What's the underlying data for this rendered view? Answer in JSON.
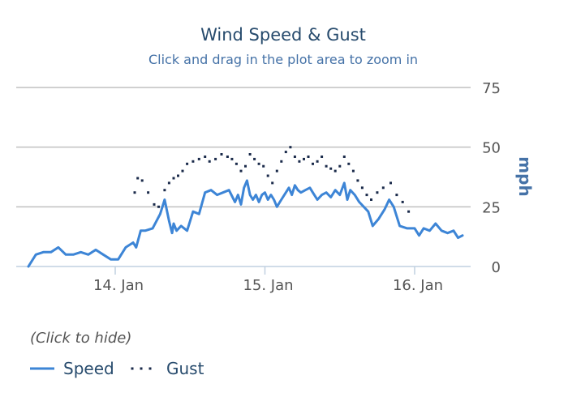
{
  "chart_data": {
    "type": "line",
    "title": "Wind Speed & Gust",
    "subtitle": "Click and drag in the plot area to zoom in",
    "ylabel": "mph",
    "ylim": [
      0,
      75
    ],
    "yticks": [
      0,
      25,
      50,
      75
    ],
    "xrange": [
      13.4,
      16.35
    ],
    "xticks": [
      {
        "value": 14,
        "label": "14. Jan"
      },
      {
        "value": 15,
        "label": "15. Jan"
      },
      {
        "value": 16,
        "label": "16. Jan"
      }
    ],
    "grid": true,
    "legend": {
      "position": "bottom-left",
      "hint": "(Click to hide)"
    },
    "series": [
      {
        "name": "Speed",
        "style": "solid",
        "color": "#3d85d6",
        "points": [
          [
            13.42,
            0
          ],
          [
            13.47,
            5
          ],
          [
            13.52,
            6
          ],
          [
            13.57,
            6
          ],
          [
            13.62,
            8
          ],
          [
            13.67,
            5
          ],
          [
            13.72,
            5
          ],
          [
            13.77,
            6
          ],
          [
            13.82,
            5
          ],
          [
            13.87,
            7
          ],
          [
            13.92,
            5
          ],
          [
            13.97,
            3
          ],
          [
            14.02,
            3
          ],
          [
            14.07,
            8
          ],
          [
            14.12,
            10
          ],
          [
            14.14,
            8
          ],
          [
            14.17,
            15
          ],
          [
            14.2,
            15
          ],
          [
            14.25,
            16
          ],
          [
            14.3,
            22
          ],
          [
            14.33,
            28
          ],
          [
            14.36,
            19
          ],
          [
            14.38,
            14
          ],
          [
            14.39,
            18
          ],
          [
            14.41,
            15
          ],
          [
            14.44,
            17
          ],
          [
            14.48,
            15
          ],
          [
            14.52,
            23
          ],
          [
            14.56,
            22
          ],
          [
            14.6,
            31
          ],
          [
            14.64,
            32
          ],
          [
            14.68,
            30
          ],
          [
            14.72,
            31
          ],
          [
            14.76,
            32
          ],
          [
            14.8,
            27
          ],
          [
            14.82,
            30
          ],
          [
            14.84,
            26
          ],
          [
            14.86,
            33
          ],
          [
            14.88,
            36
          ],
          [
            14.9,
            30
          ],
          [
            14.92,
            28
          ],
          [
            14.94,
            30
          ],
          [
            14.96,
            27
          ],
          [
            14.98,
            30
          ],
          [
            15.0,
            31
          ],
          [
            15.02,
            28
          ],
          [
            15.04,
            30
          ],
          [
            15.06,
            28
          ],
          [
            15.08,
            25
          ],
          [
            15.1,
            27
          ],
          [
            15.12,
            29
          ],
          [
            15.14,
            31
          ],
          [
            15.16,
            33
          ],
          [
            15.18,
            30
          ],
          [
            15.2,
            34
          ],
          [
            15.22,
            32
          ],
          [
            15.24,
            31
          ],
          [
            15.27,
            32
          ],
          [
            15.3,
            33
          ],
          [
            15.32,
            31
          ],
          [
            15.35,
            28
          ],
          [
            15.38,
            30
          ],
          [
            15.41,
            31
          ],
          [
            15.44,
            29
          ],
          [
            15.47,
            32
          ],
          [
            15.5,
            30
          ],
          [
            15.53,
            35
          ],
          [
            15.55,
            28
          ],
          [
            15.57,
            32
          ],
          [
            15.6,
            30
          ],
          [
            15.63,
            27
          ],
          [
            15.66,
            25
          ],
          [
            15.69,
            23
          ],
          [
            15.72,
            17
          ],
          [
            15.76,
            20
          ],
          [
            15.8,
            24
          ],
          [
            15.83,
            28
          ],
          [
            15.86,
            25
          ],
          [
            15.9,
            17
          ],
          [
            15.95,
            16
          ],
          [
            16.0,
            16
          ],
          [
            16.03,
            13
          ],
          [
            16.06,
            16
          ],
          [
            16.1,
            15
          ],
          [
            16.14,
            18
          ],
          [
            16.18,
            15
          ],
          [
            16.22,
            14
          ],
          [
            16.26,
            15
          ],
          [
            16.29,
            12
          ],
          [
            16.32,
            13
          ]
        ]
      },
      {
        "name": "Gust",
        "style": "dotted",
        "color": "#1a2a4a",
        "points": [
          [
            14.13,
            31
          ],
          [
            14.15,
            37
          ],
          [
            14.18,
            36
          ],
          [
            14.22,
            31
          ],
          [
            14.26,
            26
          ],
          [
            14.29,
            25
          ],
          [
            14.33,
            32
          ],
          [
            14.36,
            35
          ],
          [
            14.39,
            37
          ],
          [
            14.42,
            38
          ],
          [
            14.45,
            40
          ],
          [
            14.48,
            43
          ],
          [
            14.52,
            44
          ],
          [
            14.56,
            45
          ],
          [
            14.6,
            46
          ],
          [
            14.63,
            44
          ],
          [
            14.67,
            45
          ],
          [
            14.71,
            47
          ],
          [
            14.75,
            46
          ],
          [
            14.78,
            45
          ],
          [
            14.81,
            43
          ],
          [
            14.84,
            40
          ],
          [
            14.87,
            42
          ],
          [
            14.9,
            47
          ],
          [
            14.93,
            45
          ],
          [
            14.96,
            43
          ],
          [
            14.99,
            42
          ],
          [
            15.02,
            38
          ],
          [
            15.05,
            35
          ],
          [
            15.08,
            40
          ],
          [
            15.11,
            44
          ],
          [
            15.14,
            48
          ],
          [
            15.17,
            50
          ],
          [
            15.2,
            46
          ],
          [
            15.23,
            44
          ],
          [
            15.26,
            45
          ],
          [
            15.29,
            46
          ],
          [
            15.32,
            43
          ],
          [
            15.35,
            44
          ],
          [
            15.38,
            46
          ],
          [
            15.41,
            42
          ],
          [
            15.44,
            41
          ],
          [
            15.47,
            40
          ],
          [
            15.5,
            42
          ],
          [
            15.53,
            46
          ],
          [
            15.56,
            43
          ],
          [
            15.59,
            40
          ],
          [
            15.62,
            36
          ],
          [
            15.65,
            33
          ],
          [
            15.68,
            30
          ],
          [
            15.71,
            28
          ],
          [
            15.75,
            31
          ],
          [
            15.79,
            33
          ],
          [
            15.84,
            35
          ],
          [
            15.88,
            30
          ],
          [
            15.92,
            27
          ],
          [
            15.96,
            23
          ]
        ]
      }
    ]
  }
}
